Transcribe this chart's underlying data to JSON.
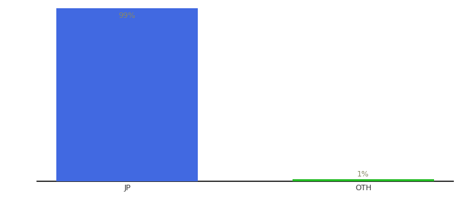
{
  "categories": [
    "JP",
    "OTH"
  ],
  "values": [
    99,
    1
  ],
  "bar_colors": [
    "#4169e1",
    "#22bb22"
  ],
  "ylim": [
    0,
    100
  ],
  "bar_labels": [
    "99%",
    "1%"
  ],
  "label_color": "#888866",
  "background_color": "#ffffff",
  "axis_label_fontsize": 8,
  "bar_label_fontsize": 8,
  "bar_width": 0.6
}
